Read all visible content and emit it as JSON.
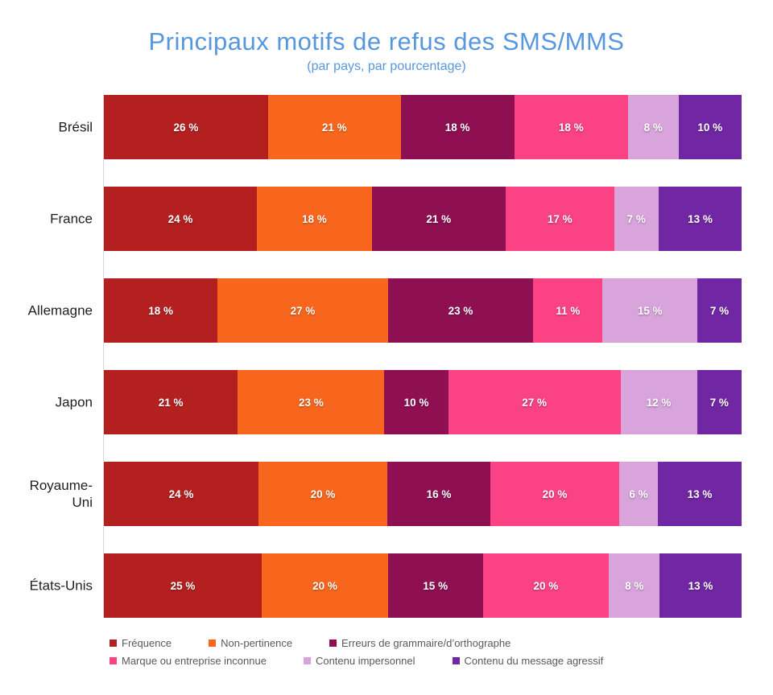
{
  "title": "Principaux motifs de refus des SMS/MMS",
  "subtitle": "(par pays, par pourcentage)",
  "colors": {
    "title_accent": "#5697DE",
    "axis_line": "#D9D9D9",
    "category_label": "#1F1F1F",
    "legend_text": "#595959",
    "value_label": "#FFFFFF"
  },
  "chart_data": {
    "type": "bar",
    "subtype": "stacked-100-horizontal",
    "title": "Principaux motifs de refus des SMS/MMS",
    "subtitle": "(par pays, par pourcentage)",
    "value_suffix": " %",
    "legend_position": "bottom",
    "grid": false,
    "categories": [
      "Brésil",
      "France",
      "Allemagne",
      "Japon",
      "Royaume-Uni",
      "États-Unis"
    ],
    "series": [
      {
        "name": "Fréquence",
        "color": "#B42020",
        "values": [
          26,
          24,
          18,
          21,
          24,
          25
        ]
      },
      {
        "name": "Non-pertinence",
        "color": "#F8661D",
        "values": [
          21,
          18,
          27,
          23,
          20,
          20
        ]
      },
      {
        "name": "Erreurs de grammaire/d’orthographe",
        "color": "#8E1052",
        "values": [
          18,
          21,
          23,
          10,
          16,
          15
        ]
      },
      {
        "name": "Marque ou entreprise inconnue",
        "color": "#FA4285",
        "values": [
          18,
          17,
          11,
          27,
          20,
          20
        ]
      },
      {
        "name": "Contenu impersonnel",
        "color": "#D9A3DC",
        "values": [
          8,
          7,
          15,
          12,
          6,
          8
        ]
      },
      {
        "name": "Contenu du message agressif",
        "color": "#7127A3",
        "values": [
          10,
          13,
          7,
          7,
          13,
          13
        ]
      }
    ]
  }
}
